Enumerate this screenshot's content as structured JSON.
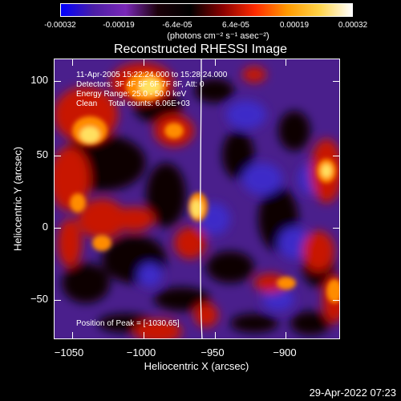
{
  "colorbar": {
    "gradient_colors": [
      "#0000ff",
      "#4b1ea5",
      "#7a28b8",
      "#1a0008",
      "#000000",
      "#8a0000",
      "#ff2a00",
      "#ff9a00",
      "#ffd44a",
      "#ffffff"
    ],
    "ticks": [
      "-0.00032",
      "-0.00019",
      "-6.4e-05",
      "6.4e-05",
      "0.00019",
      "0.00032"
    ],
    "units": "(photons cm⁻² s⁻¹ asec⁻²)"
  },
  "title": "Reconstructed RHESSI Image",
  "x_axis": {
    "label": "Heliocentric X (arcsec)",
    "ticks": [
      "−1050",
      "−1000",
      "−950",
      "−900"
    ]
  },
  "y_axis": {
    "label": "Heliocentric Y (arcsec)",
    "ticks": [
      "100",
      "50",
      "0",
      "−50"
    ]
  },
  "info": {
    "time_range": "11-Apr-2005 15:22:24.000 to 15:28:24.000",
    "detectors": "Detectors: 3F 4F 5F 6F 7F 8F, Att: 0",
    "energy_range": "Energy Range: 25.0 - 50.0 keV",
    "method": "Clean     Total counts: 6.06E+03",
    "peak": "Position of Peak = [-1030,65]"
  },
  "timestamp": "29-Apr-2022 07:23"
}
